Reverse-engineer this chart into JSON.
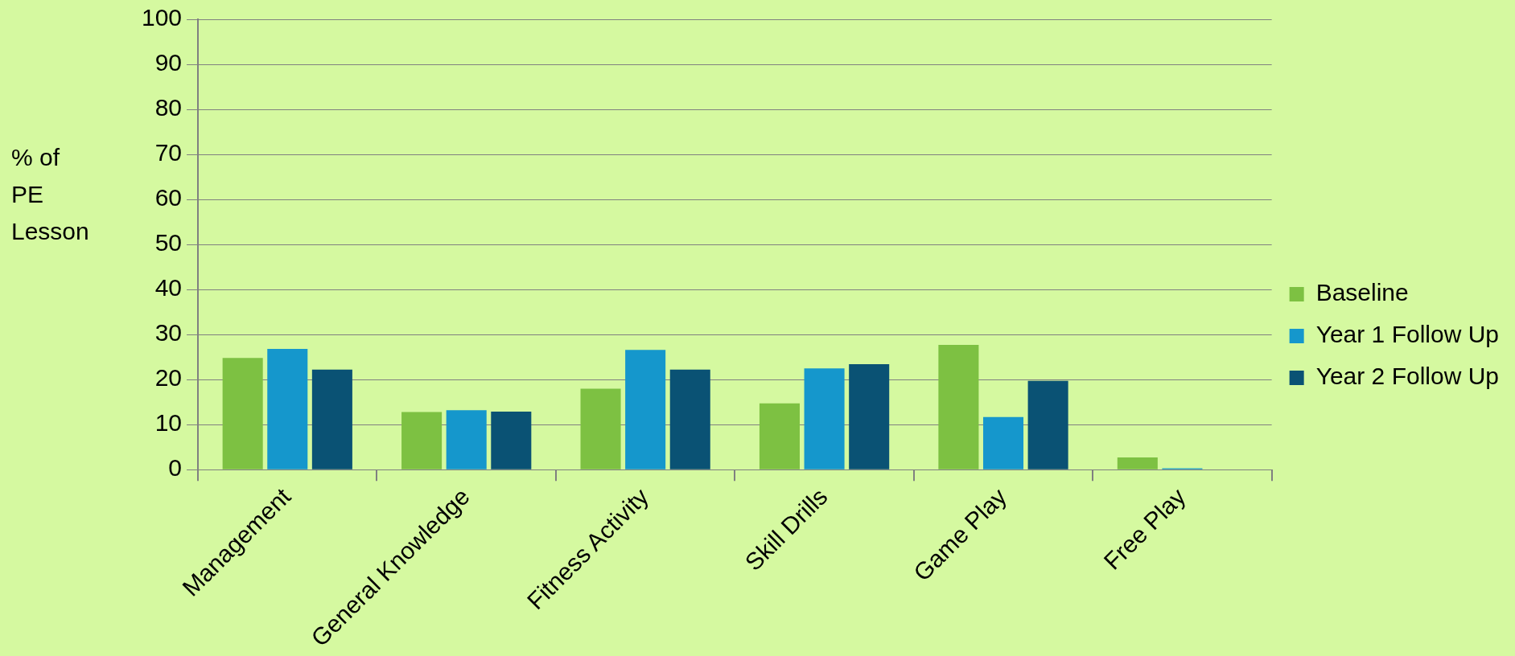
{
  "chart_data": {
    "type": "bar",
    "ylabel": "% of PE Lesson",
    "categories": [
      "Management",
      "General Knowledge",
      "Fitness Activity",
      "Skill Drills",
      "Game Play",
      "Free Play"
    ],
    "series": [
      {
        "name": "Baseline",
        "color": "#7dc142",
        "values": [
          24.8,
          12.8,
          18.0,
          14.7,
          27.7,
          2.7
        ]
      },
      {
        "name": "Year 1 Follow Up",
        "color": "#1597cc",
        "values": [
          26.8,
          13.2,
          26.6,
          22.5,
          11.7,
          0.3
        ]
      },
      {
        "name": "Year 2 Follow Up",
        "color": "#0a5274",
        "values": [
          22.2,
          12.9,
          22.2,
          23.4,
          19.7,
          0
        ]
      }
    ],
    "ylim": [
      0,
      100
    ],
    "yticks": [
      0,
      10,
      20,
      30,
      40,
      50,
      60,
      70,
      80,
      90,
      100
    ],
    "grid": "y",
    "legend": "right"
  }
}
